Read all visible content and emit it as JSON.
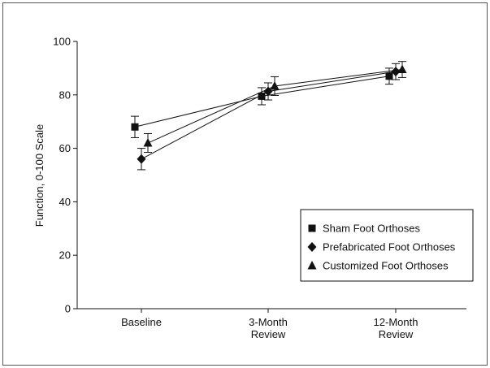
{
  "chart_data": {
    "type": "line",
    "title": "",
    "xlabel": "",
    "ylabel": "Function, 0-100 Scale",
    "categories": [
      "Baseline",
      "3-Month Review",
      "12-Month Review"
    ],
    "category_lines": [
      [
        "Baseline"
      ],
      [
        "3-Month",
        "Review"
      ],
      [
        "12-Month",
        "Review"
      ]
    ],
    "ylim": [
      0,
      100
    ],
    "yticks": [
      0,
      20,
      40,
      60,
      80,
      100
    ],
    "grid": false,
    "legend_position": "bottom-right",
    "series": [
      {
        "name": "Sham Foot Orthoses",
        "marker": "square",
        "values": [
          68,
          79.5,
          87
        ],
        "err": [
          4,
          3.2,
          3
        ]
      },
      {
        "name": "Prefabricated Foot Orthoses",
        "marker": "diamond",
        "values": [
          56,
          81.3,
          88.7
        ],
        "err": [
          4,
          3.2,
          3
        ]
      },
      {
        "name": "Customized Foot Orthoses",
        "marker": "triangle",
        "values": [
          62,
          83.3,
          89.5
        ],
        "err": [
          3.5,
          3.5,
          3
        ]
      }
    ],
    "colors": {
      "line": "#111111",
      "marker": "#111111",
      "frame": "#555555"
    }
  }
}
